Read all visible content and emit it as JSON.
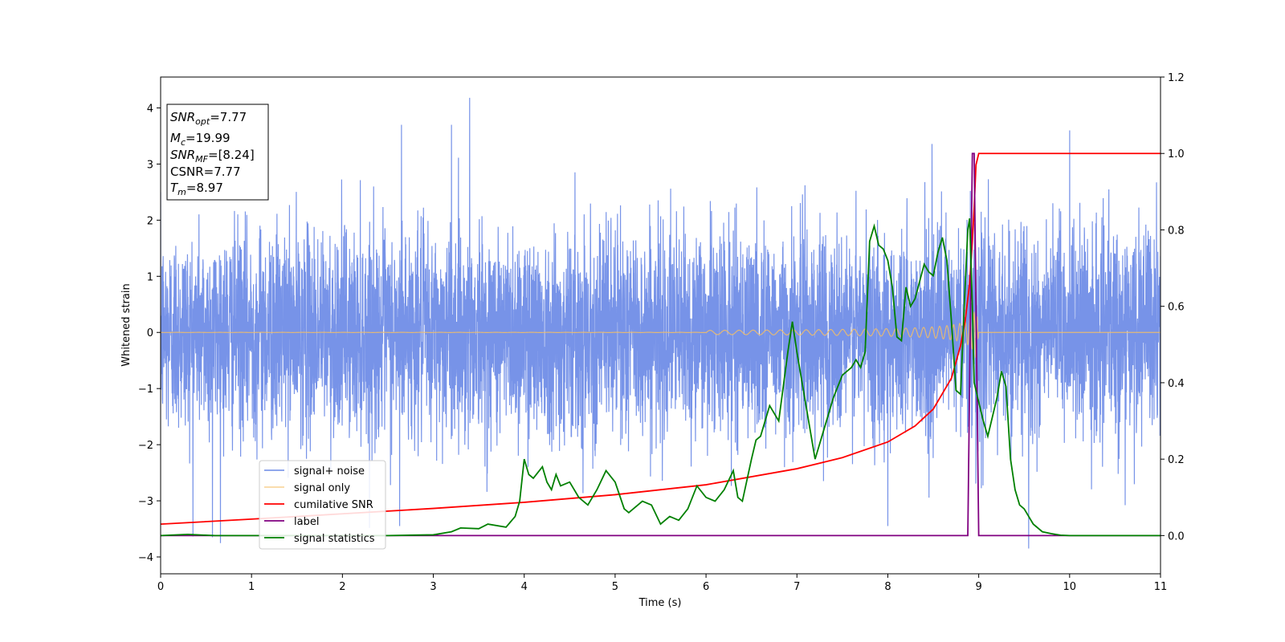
{
  "chart_data": {
    "type": "line",
    "title": "",
    "xlabel": "Time (s)",
    "ylabel": "Whitened strain",
    "xlim": [
      0,
      11
    ],
    "ylim": [
      -4.3,
      4.55
    ],
    "y2lim": [
      -0.1,
      1.2
    ],
    "x_ticks": [
      0,
      1,
      2,
      3,
      4,
      5,
      6,
      7,
      8,
      9,
      10,
      11
    ],
    "y_ticks": [
      -4,
      -3,
      -2,
      -1,
      0,
      1,
      2,
      3,
      4
    ],
    "y2_ticks": [
      0.0,
      0.2,
      0.4,
      0.6,
      0.8,
      1.0,
      1.2
    ],
    "grid": false,
    "legend_placement": "lower-left",
    "series": [
      {
        "name": "signal+ noise",
        "axis": "left",
        "color": "#6b8ae6",
        "noise_std": 0.9,
        "sample_rate": 2048,
        "notable_peaks": [
          {
            "x": 3.4,
            "y": 4.18
          },
          {
            "x": 3.2,
            "y": 3.7
          },
          {
            "x": 2.65,
            "y": 3.7
          },
          {
            "x": 10.0,
            "y": 3.6
          },
          {
            "x": 9.55,
            "y": -3.85
          },
          {
            "x": 0.57,
            "y": -3.65
          },
          {
            "x": 2.63,
            "y": -3.45
          },
          {
            "x": 8.0,
            "y": -3.45
          }
        ]
      },
      {
        "name": "signal only",
        "axis": "left",
        "color": "#f5be64",
        "t_merger": 8.97,
        "peak_amplitude": 0.47
      },
      {
        "name": "cumilative SNR",
        "axis": "right",
        "color": "#ff0000",
        "x": [
          0,
          1,
          2,
          3,
          4,
          5,
          6,
          7,
          7.5,
          8,
          8.3,
          8.5,
          8.7,
          8.8,
          8.85,
          8.9,
          8.93,
          8.95,
          8.97,
          9.0,
          11
        ],
        "values": [
          0.03,
          0.043,
          0.057,
          0.071,
          0.087,
          0.107,
          0.133,
          0.175,
          0.204,
          0.245,
          0.287,
          0.331,
          0.412,
          0.497,
          0.56,
          0.66,
          0.77,
          0.86,
          0.97,
          1.0,
          1.0
        ]
      },
      {
        "name": "label",
        "axis": "right",
        "color": "#800080",
        "x": [
          0,
          8.88,
          8.93,
          8.95,
          9.0,
          11
        ],
        "values": [
          0,
          0,
          1.0,
          1.0,
          0,
          0
        ]
      },
      {
        "name": "signal statistics",
        "axis": "right",
        "color": "#008000",
        "x": [
          0,
          0.3,
          0.6,
          1,
          2,
          2.5,
          3,
          3.2,
          3.3,
          3.5,
          3.6,
          3.8,
          3.9,
          3.95,
          4.0,
          4.05,
          4.1,
          4.2,
          4.25,
          4.3,
          4.35,
          4.4,
          4.5,
          4.6,
          4.7,
          4.8,
          4.9,
          5.0,
          5.1,
          5.15,
          5.2,
          5.3,
          5.4,
          5.5,
          5.6,
          5.7,
          5.8,
          5.9,
          6.0,
          6.1,
          6.2,
          6.3,
          6.35,
          6.4,
          6.5,
          6.55,
          6.6,
          6.7,
          6.8,
          6.9,
          6.95,
          7.0,
          7.1,
          7.2,
          7.3,
          7.4,
          7.5,
          7.6,
          7.65,
          7.7,
          7.75,
          7.8,
          7.85,
          7.9,
          7.95,
          8.0,
          8.05,
          8.1,
          8.15,
          8.2,
          8.25,
          8.3,
          8.4,
          8.45,
          8.5,
          8.55,
          8.6,
          8.65,
          8.7,
          8.75,
          8.8,
          8.85,
          8.88,
          8.9,
          8.93,
          8.95,
          9.0,
          9.05,
          9.1,
          9.2,
          9.25,
          9.3,
          9.35,
          9.4,
          9.45,
          9.5,
          9.55,
          9.6,
          9.7,
          9.8,
          9.9,
          10.0,
          10.5,
          11
        ],
        "values": [
          0,
          0.003,
          0.0,
          0.0,
          0.0,
          0.0,
          0.002,
          0.01,
          0.02,
          0.018,
          0.03,
          0.022,
          0.05,
          0.09,
          0.2,
          0.16,
          0.15,
          0.18,
          0.14,
          0.12,
          0.16,
          0.13,
          0.14,
          0.1,
          0.08,
          0.12,
          0.17,
          0.14,
          0.07,
          0.06,
          0.07,
          0.09,
          0.08,
          0.03,
          0.05,
          0.04,
          0.07,
          0.13,
          0.1,
          0.09,
          0.12,
          0.17,
          0.1,
          0.09,
          0.2,
          0.25,
          0.26,
          0.34,
          0.3,
          0.48,
          0.56,
          0.48,
          0.34,
          0.2,
          0.28,
          0.36,
          0.42,
          0.44,
          0.46,
          0.44,
          0.48,
          0.77,
          0.81,
          0.76,
          0.75,
          0.72,
          0.65,
          0.52,
          0.51,
          0.65,
          0.6,
          0.62,
          0.71,
          0.69,
          0.68,
          0.74,
          0.78,
          0.72,
          0.56,
          0.38,
          0.37,
          0.65,
          0.8,
          0.83,
          0.6,
          0.4,
          0.35,
          0.3,
          0.26,
          0.36,
          0.43,
          0.39,
          0.2,
          0.12,
          0.08,
          0.07,
          0.05,
          0.03,
          0.01,
          0.005,
          0.001,
          0.0,
          0.0,
          0.0
        ]
      }
    ],
    "annotation_box": {
      "lines": [
        {
          "base": "SNR",
          "sub": "opt",
          "rest": "=7.77"
        },
        {
          "base": "M",
          "sub": "c",
          "rest": "=19.99"
        },
        {
          "base": "SNR",
          "sub": "MF",
          "rest": "=[8.24]"
        },
        {
          "base": "CSNR",
          "sub": "",
          "rest": "=7.77"
        },
        {
          "base": "T",
          "sub": "m",
          "rest": "=8.97"
        }
      ]
    }
  }
}
